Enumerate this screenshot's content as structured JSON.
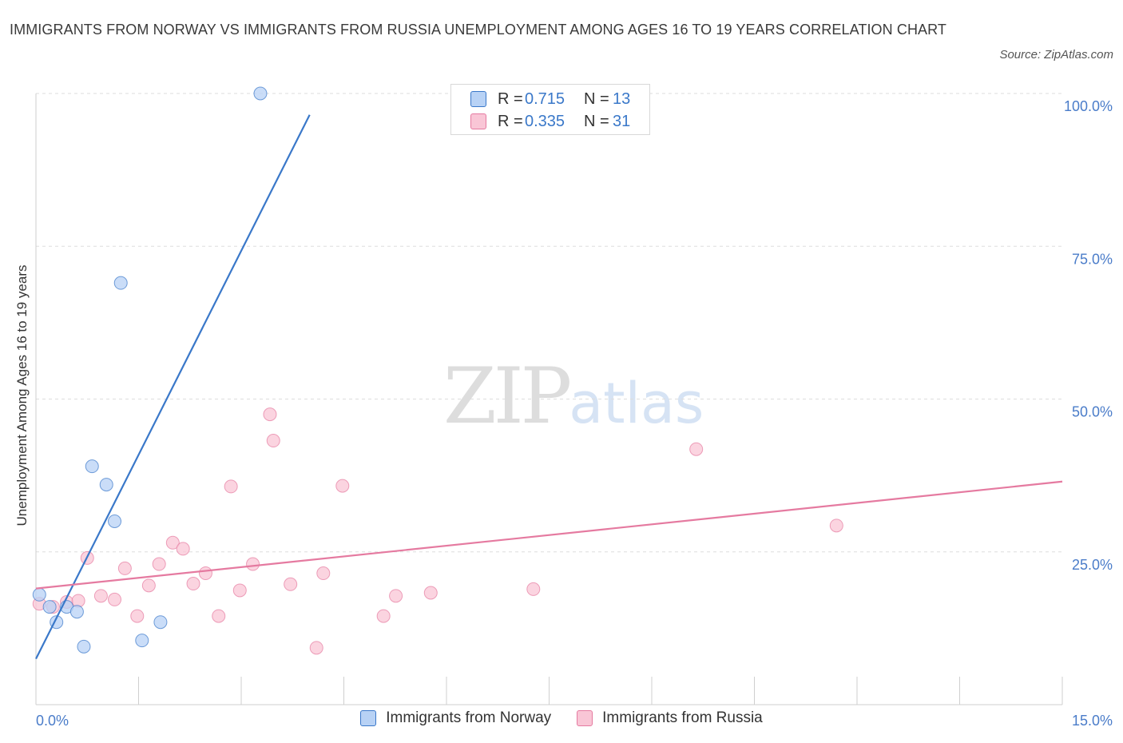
{
  "title": "IMMIGRANTS FROM NORWAY VS IMMIGRANTS FROM RUSSIA UNEMPLOYMENT AMONG AGES 16 TO 19 YEARS CORRELATION CHART",
  "source": "Source: ZipAtlas.com",
  "watermark": {
    "zip": "ZIP",
    "atlas": "atlas"
  },
  "colors": {
    "norway": "#3a78c9",
    "norway_fill": "#b8d2f5",
    "russia": "#e57aa0",
    "russia_fill": "#f9c6d6",
    "tick_label": "#4a7cc9"
  },
  "legend": {
    "norway": {
      "r_label": "R =",
      "r_value": "0.715",
      "n_label": "N =",
      "n_value": "13"
    },
    "russia": {
      "r_label": "R =",
      "r_value": "0.335",
      "n_label": "N =",
      "n_value": "31"
    }
  },
  "chart_data": {
    "type": "scatter",
    "title": "IMMIGRANTS FROM NORWAY VS IMMIGRANTS FROM RUSSIA UNEMPLOYMENT AMONG AGES 16 TO 19 YEARS CORRELATION CHART",
    "xlabel": "",
    "ylabel": "Unemployment Among Ages 16 to 19 years",
    "xlim": [
      0,
      15
    ],
    "ylim": [
      0,
      100
    ],
    "x_tick_labels": [
      "0.0%",
      "15.0%"
    ],
    "y_ticks": [
      25,
      50,
      75,
      100
    ],
    "y_tick_labels": [
      "25.0%",
      "50.0%",
      "75.0%",
      "100.0%"
    ],
    "grid": true,
    "legend_placement": "bottom-center",
    "series": [
      {
        "name": "Immigrants from Norway",
        "color": "#3a78c9",
        "points": [
          {
            "x": 0.05,
            "y": 18.0
          },
          {
            "x": 0.2,
            "y": 16.0
          },
          {
            "x": 0.3,
            "y": 13.5
          },
          {
            "x": 0.45,
            "y": 16.0
          },
          {
            "x": 0.6,
            "y": 15.2
          },
          {
            "x": 0.7,
            "y": 9.5
          },
          {
            "x": 0.82,
            "y": 39.0
          },
          {
            "x": 1.03,
            "y": 36.0
          },
          {
            "x": 1.15,
            "y": 30.0
          },
          {
            "x": 1.24,
            "y": 69.0
          },
          {
            "x": 1.55,
            "y": 10.5
          },
          {
            "x": 1.82,
            "y": 13.5
          },
          {
            "x": 3.28,
            "y": 100.0
          }
        ],
        "trend": {
          "x": [
            0.0,
            4.0
          ],
          "y": [
            7.5,
            96.5
          ]
        }
      },
      {
        "name": "Immigrants from Russia",
        "color": "#e57aa0",
        "points": [
          {
            "x": 0.05,
            "y": 16.5
          },
          {
            "x": 0.25,
            "y": 16.0
          },
          {
            "x": 0.45,
            "y": 16.8
          },
          {
            "x": 0.62,
            "y": 17.0
          },
          {
            "x": 0.75,
            "y": 24.0
          },
          {
            "x": 0.95,
            "y": 17.8
          },
          {
            "x": 1.15,
            "y": 17.2
          },
          {
            "x": 1.3,
            "y": 22.3
          },
          {
            "x": 1.48,
            "y": 14.5
          },
          {
            "x": 1.65,
            "y": 19.5
          },
          {
            "x": 1.8,
            "y": 23.0
          },
          {
            "x": 2.0,
            "y": 26.5
          },
          {
            "x": 2.15,
            "y": 25.5
          },
          {
            "x": 2.3,
            "y": 19.8
          },
          {
            "x": 2.48,
            "y": 21.5
          },
          {
            "x": 2.67,
            "y": 14.5
          },
          {
            "x": 2.85,
            "y": 35.7
          },
          {
            "x": 2.98,
            "y": 18.7
          },
          {
            "x": 3.17,
            "y": 23.0
          },
          {
            "x": 3.42,
            "y": 47.5
          },
          {
            "x": 3.47,
            "y": 43.2
          },
          {
            "x": 3.72,
            "y": 19.7
          },
          {
            "x": 4.1,
            "y": 9.3
          },
          {
            "x": 4.2,
            "y": 21.5
          },
          {
            "x": 4.48,
            "y": 35.8
          },
          {
            "x": 5.08,
            "y": 14.5
          },
          {
            "x": 5.26,
            "y": 17.8
          },
          {
            "x": 5.77,
            "y": 18.3
          },
          {
            "x": 7.27,
            "y": 18.9
          },
          {
            "x": 9.65,
            "y": 41.8
          },
          {
            "x": 11.7,
            "y": 29.3
          }
        ],
        "trend": {
          "x": [
            0.0,
            15.0
          ],
          "y": [
            19.0,
            36.5
          ]
        }
      }
    ]
  },
  "bottom_legend": [
    "Immigrants from Norway",
    "Immigrants from Russia"
  ]
}
